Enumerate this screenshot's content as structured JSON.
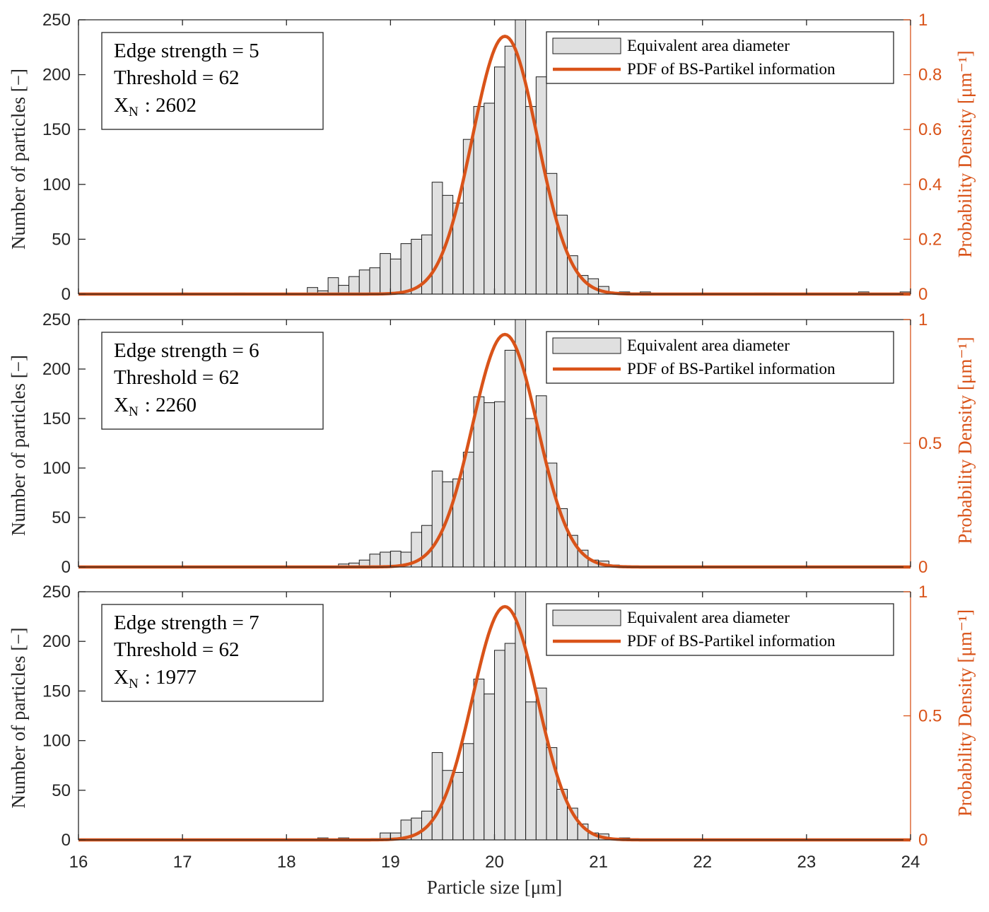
{
  "chart_data": [
    {
      "type": "bar",
      "title": "",
      "ylabel": "Number of particles [−]",
      "y2label": "Probability Density [μm⁻¹]",
      "ylim": [
        0,
        250
      ],
      "y2lim": [
        0,
        1
      ],
      "yticks": [
        "0",
        "50",
        "100",
        "150",
        "200",
        "250"
      ],
      "y2ticks": [
        "0",
        "0.2",
        "0.4",
        "0.6",
        "0.8",
        "1"
      ],
      "annotation": [
        "Edge strength = 5",
        "Threshold = 62",
        "X",
        "N",
        ": 2602"
      ],
      "legend": [
        "Equivalent area diameter",
        "PDF of BS-Partikel information"
      ],
      "bins": [
        [
          17.0,
          1
        ],
        [
          17.55,
          1
        ],
        [
          18.25,
          6
        ],
        [
          18.35,
          3
        ],
        [
          18.45,
          15
        ],
        [
          18.55,
          8
        ],
        [
          18.65,
          16
        ],
        [
          18.75,
          22
        ],
        [
          18.85,
          24
        ],
        [
          18.95,
          37
        ],
        [
          19.05,
          32
        ],
        [
          19.15,
          46
        ],
        [
          19.25,
          50
        ],
        [
          19.35,
          54
        ],
        [
          19.45,
          102
        ],
        [
          19.55,
          90
        ],
        [
          19.65,
          83
        ],
        [
          19.75,
          141
        ],
        [
          19.85,
          171
        ],
        [
          19.95,
          174
        ],
        [
          20.05,
          207
        ],
        [
          20.15,
          226
        ],
        [
          20.25,
          250
        ],
        [
          20.35,
          171
        ],
        [
          20.45,
          198
        ],
        [
          20.55,
          110
        ],
        [
          20.65,
          72
        ],
        [
          20.75,
          35
        ],
        [
          20.85,
          17
        ],
        [
          20.95,
          14
        ],
        [
          21.05,
          7
        ],
        [
          21.15,
          1
        ],
        [
          21.25,
          2
        ],
        [
          21.35,
          1
        ],
        [
          21.45,
          2
        ],
        [
          21.95,
          1
        ],
        [
          22.55,
          1
        ],
        [
          22.65,
          1
        ],
        [
          23.55,
          2
        ],
        [
          23.95,
          2
        ]
      ],
      "pdf": {
        "mean": 20.1,
        "std": 0.313,
        "peak": 0.94
      }
    },
    {
      "type": "bar",
      "title": "",
      "ylabel": "Number of particles [−]",
      "y2label": "Probability Density [μm⁻¹]",
      "ylim": [
        0,
        250
      ],
      "y2lim": [
        0,
        1
      ],
      "yticks": [
        "0",
        "50",
        "100",
        "150",
        "200",
        "250"
      ],
      "y2ticks": [
        "0",
        "0.5",
        "1"
      ],
      "annotation": [
        "Edge strength = 6",
        "Threshold = 62",
        "X",
        "N",
        ": 2260"
      ],
      "legend": [
        "Equivalent area diameter",
        "PDF of BS-Partikel information"
      ],
      "bins": [
        [
          18.25,
          1
        ],
        [
          18.35,
          1
        ],
        [
          18.45,
          1
        ],
        [
          18.55,
          3
        ],
        [
          18.65,
          4
        ],
        [
          18.75,
          7
        ],
        [
          18.85,
          13
        ],
        [
          18.95,
          15
        ],
        [
          19.05,
          16
        ],
        [
          19.15,
          15
        ],
        [
          19.25,
          35
        ],
        [
          19.35,
          42
        ],
        [
          19.45,
          97
        ],
        [
          19.55,
          86
        ],
        [
          19.65,
          89
        ],
        [
          19.75,
          116
        ],
        [
          19.85,
          172
        ],
        [
          19.95,
          166
        ],
        [
          20.05,
          167
        ],
        [
          20.15,
          219
        ],
        [
          20.25,
          250
        ],
        [
          20.35,
          150
        ],
        [
          20.45,
          173
        ],
        [
          20.55,
          105
        ],
        [
          20.65,
          59
        ],
        [
          20.75,
          32
        ],
        [
          20.85,
          17
        ],
        [
          20.95,
          7
        ],
        [
          21.05,
          6
        ],
        [
          21.15,
          2
        ],
        [
          21.25,
          1
        ],
        [
          21.95,
          1
        ],
        [
          22.65,
          1
        ],
        [
          23.65,
          1
        ],
        [
          23.95,
          1
        ]
      ],
      "pdf": {
        "mean": 20.1,
        "std": 0.313,
        "peak": 0.94
      }
    },
    {
      "type": "bar",
      "title": "",
      "ylabel": "Number of particles [−]",
      "y2label": "Probability Density [μm⁻¹]",
      "ylim": [
        0,
        250
      ],
      "y2lim": [
        0,
        1
      ],
      "yticks": [
        "0",
        "50",
        "100",
        "150",
        "200",
        "250"
      ],
      "y2ticks": [
        "0",
        "0.5",
        "1"
      ],
      "xlabel": "Particle size [μm]",
      "xlim": [
        16,
        24
      ],
      "xticks": [
        "16",
        "17",
        "18",
        "19",
        "20",
        "21",
        "22",
        "23",
        "24"
      ],
      "annotation": [
        "Edge strength = 7",
        "Threshold = 62",
        "X",
        "N",
        ": 1977"
      ],
      "legend": [
        "Equivalent area diameter",
        "PDF of BS-Partikel information"
      ],
      "bins": [
        [
          18.25,
          1
        ],
        [
          18.35,
          2
        ],
        [
          18.55,
          2
        ],
        [
          18.85,
          1
        ],
        [
          18.95,
          7
        ],
        [
          19.05,
          7
        ],
        [
          19.15,
          20
        ],
        [
          19.25,
          22
        ],
        [
          19.35,
          29
        ],
        [
          19.45,
          88
        ],
        [
          19.55,
          70
        ],
        [
          19.65,
          68
        ],
        [
          19.75,
          97
        ],
        [
          19.85,
          162
        ],
        [
          19.95,
          147
        ],
        [
          20.05,
          191
        ],
        [
          20.15,
          198
        ],
        [
          20.25,
          250
        ],
        [
          20.35,
          139
        ],
        [
          20.45,
          153
        ],
        [
          20.55,
          93
        ],
        [
          20.65,
          51
        ],
        [
          20.75,
          32
        ],
        [
          20.85,
          16
        ],
        [
          20.95,
          7
        ],
        [
          21.05,
          6
        ],
        [
          21.15,
          1
        ],
        [
          21.25,
          2
        ],
        [
          22.35,
          1
        ],
        [
          23.75,
          1
        ]
      ],
      "pdf": {
        "mean": 20.1,
        "std": 0.313,
        "peak": 0.94
      }
    }
  ],
  "colors": {
    "pdf": "#d95319",
    "bar_fill": "#e0e0e0",
    "axis": "#262626"
  }
}
